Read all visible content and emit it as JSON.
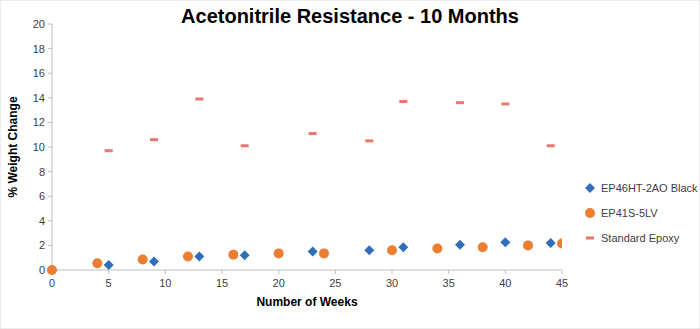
{
  "chart_data": {
    "type": "scatter",
    "title": "Acetonitrile Resistance - 10 Months",
    "x_label": "Number of Weeks",
    "y_label": "% Weight Change",
    "xlim": [
      0,
      45
    ],
    "xticks": [
      0,
      5,
      10,
      15,
      20,
      25,
      30,
      35,
      40,
      45
    ],
    "ylim": [
      0,
      20
    ],
    "yticks": [
      0,
      2,
      4,
      6,
      8,
      10,
      12,
      14,
      16,
      18,
      20
    ],
    "grid": false,
    "legend": "right",
    "series": [
      {
        "name": "EP46HT-2AO Black",
        "color": "#2f6fb8",
        "marker": "diamond",
        "x": [
          0,
          5,
          9,
          13,
          17,
          23,
          28,
          31,
          36,
          40,
          44
        ],
        "values": [
          0,
          0.4,
          0.7,
          1.1,
          1.2,
          1.5,
          1.6,
          1.85,
          2.05,
          2.25,
          2.2
        ]
      },
      {
        "name": "EP41S-5LV",
        "color": "#ed7d31",
        "marker": "circle",
        "x": [
          0,
          4,
          8,
          12,
          16,
          20,
          24,
          30,
          34,
          38,
          42,
          45
        ],
        "values": [
          0,
          0.55,
          0.85,
          1.1,
          1.25,
          1.35,
          1.35,
          1.6,
          1.75,
          1.85,
          2.0,
          2.15
        ]
      },
      {
        "name": "Standard Epoxy",
        "color": "#e8776f",
        "marker": "dash",
        "x": [
          5,
          9,
          13,
          17,
          23,
          28,
          31,
          36,
          40,
          44
        ],
        "values": [
          9.7,
          10.6,
          13.9,
          10.1,
          11.1,
          10.5,
          13.7,
          13.6,
          13.5,
          10.1
        ]
      }
    ]
  }
}
